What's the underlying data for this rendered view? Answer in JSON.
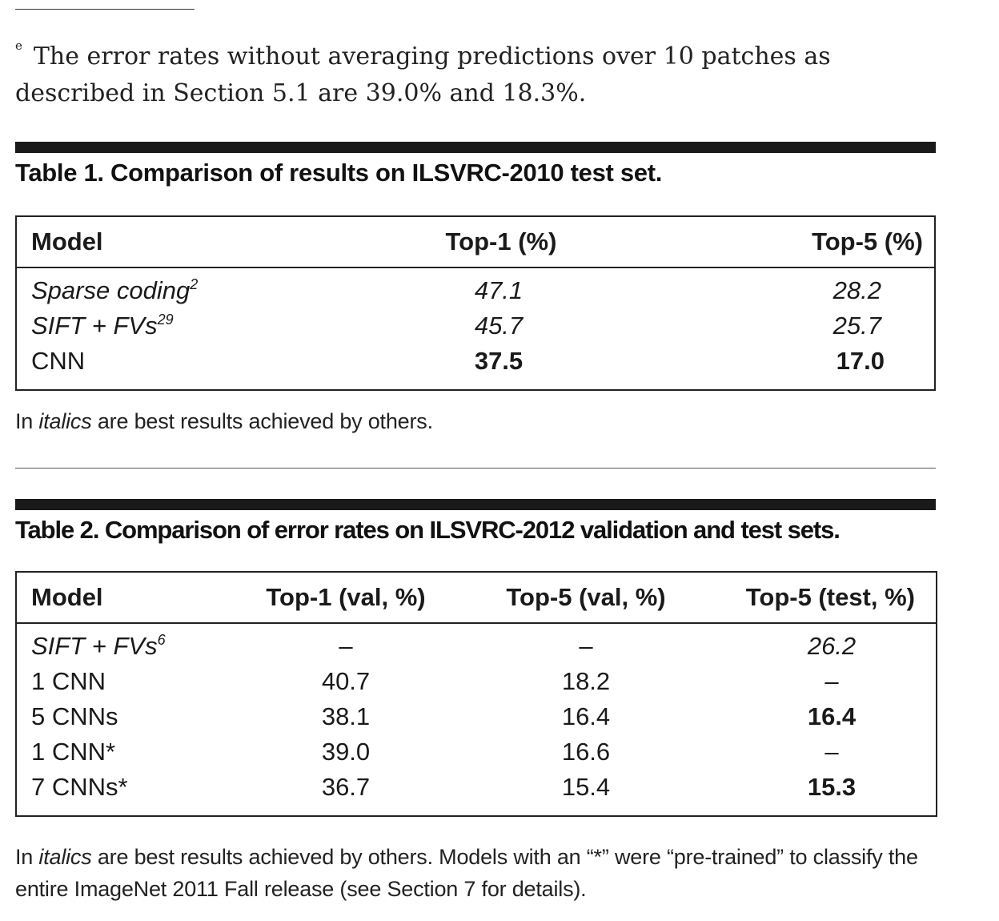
{
  "footnote": {
    "marker": "e",
    "text": "The error rates without averaging predictions over 10 patches as described in Section 5.1 are 39.0% and 18.3%."
  },
  "table1": {
    "caption": "Table 1. Comparison of results on ILSVRC-2010 test set.",
    "headers": [
      "Model",
      "Top-1 (%)",
      "Top-5 (%)"
    ],
    "rows": [
      {
        "model": "Sparse coding",
        "ref": "2",
        "top1": "47.1",
        "top5": "28.2",
        "italic": true
      },
      {
        "model": "SIFT + FVs",
        "ref": "29",
        "top1": "45.7",
        "top5": "25.7",
        "italic": true
      },
      {
        "model": "CNN",
        "ref": "",
        "top1": "37.5",
        "top5": "17.0",
        "bold_values": true
      }
    ],
    "note_prefix": "In ",
    "note_italic": "italics",
    "note_suffix": " are best results achieved by others."
  },
  "table2": {
    "caption": "Table 2. Comparison of error rates on ILSVRC-2012 validation and test sets.",
    "headers": [
      "Model",
      "Top-1 (val, %)",
      "Top-5 (val, %)",
      "Top-5 (test, %)"
    ],
    "rows": [
      {
        "model": "SIFT + FVs",
        "ref": "6",
        "top1_val": "–",
        "top5_val": "–",
        "top5_test": "26.2",
        "italic": true
      },
      {
        "model": "1 CNN",
        "ref": "",
        "top1_val": "40.7",
        "top5_val": "18.2",
        "top5_test": "–"
      },
      {
        "model": "5 CNNs",
        "ref": "",
        "top1_val": "38.1",
        "top5_val": "16.4",
        "top5_test": "16.4",
        "bold_test": true
      },
      {
        "model": "1 CNN*",
        "ref": "",
        "top1_val": "39.0",
        "top5_val": "16.6",
        "top5_test": "–"
      },
      {
        "model": "7 CNNs*",
        "ref": "",
        "top1_val": "36.7",
        "top5_val": "15.4",
        "top5_test": "15.3",
        "bold_test": true
      }
    ],
    "note_prefix": "In ",
    "note_italic": "italics",
    "note_suffix": " are best results achieved by others. Models with an “*” were “pre-trained” to classify the entire ImageNet 2011 Fall release (see Section 7 for details)."
  }
}
